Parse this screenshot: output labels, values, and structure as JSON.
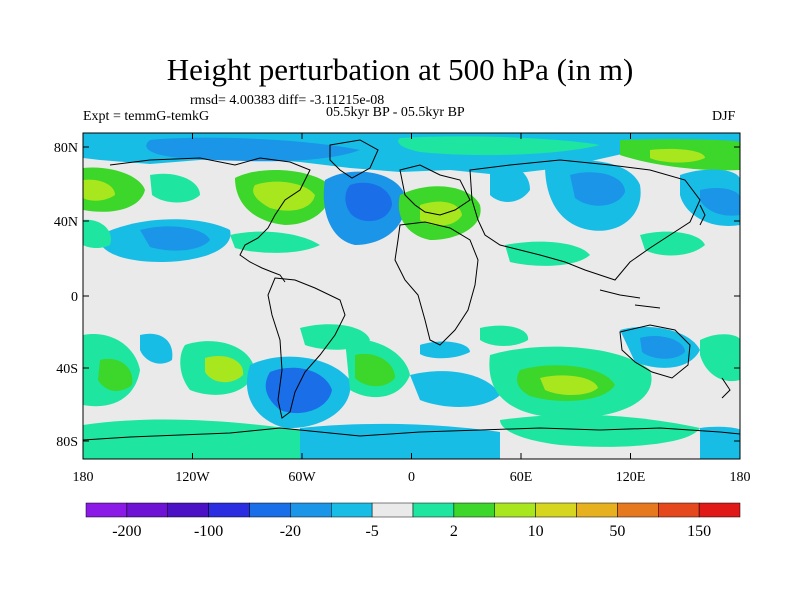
{
  "title": "Height perturbation at 500 hPa (in m)",
  "stats": "rmsd= 4.00383 diff= -3.11215e-08",
  "experiment": "Expt = temmG-temkG",
  "period": "05.5kyr BP - 05.5kyr BP",
  "season": "DJF",
  "lat_labels": [
    "80N",
    "40N",
    "0",
    "40S",
    "80S"
  ],
  "lon_labels": [
    "180",
    "120W",
    "60W",
    "0",
    "60E",
    "120E",
    "180"
  ],
  "colorbar": {
    "colors": [
      "#8b1ae6",
      "#6e12d4",
      "#4a12c4",
      "#2a2ee0",
      "#1a6ee8",
      "#1a95e8",
      "#18bde6",
      "#eaeaea",
      "#1ee6a0",
      "#3dd62a",
      "#a8e61e",
      "#d6d61e",
      "#e6b01e",
      "#e6781e",
      "#e6481e",
      "#e01818"
    ],
    "tick_labels": [
      "-200",
      "-100",
      "-20",
      "-5",
      "2",
      "10",
      "50",
      "150"
    ]
  }
}
